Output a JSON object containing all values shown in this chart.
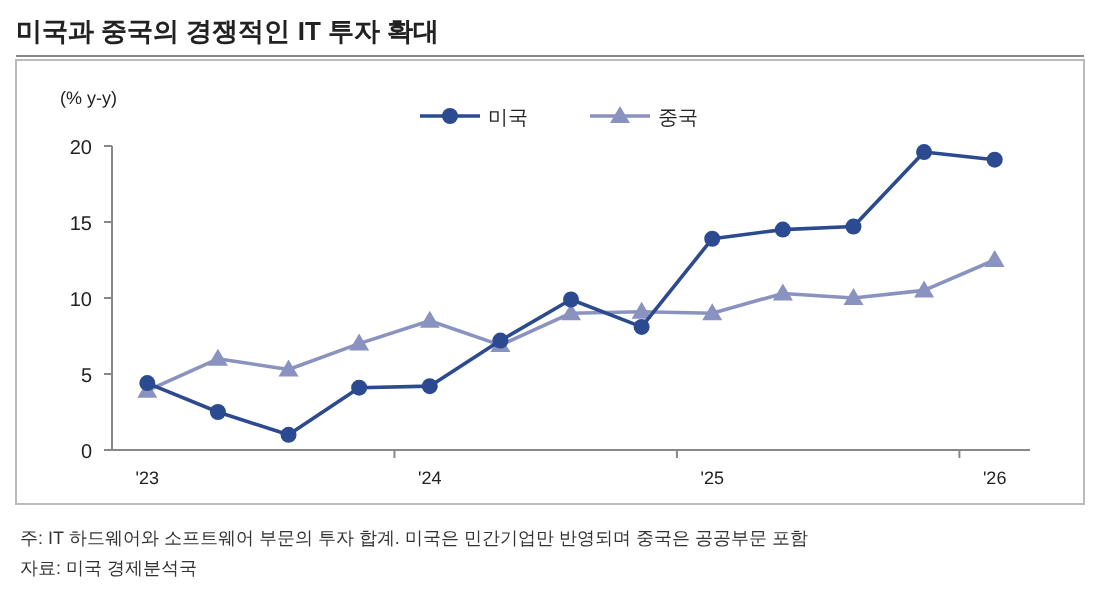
{
  "chart_data": {
    "type": "line",
    "title": "미국과 중국의 경쟁적인 IT 투자 확대",
    "ylabel": "(% y-y)",
    "categories": [
      "'23",
      null,
      null,
      null,
      "'24",
      null,
      null,
      null,
      "'25",
      null,
      null,
      null,
      "'26"
    ],
    "series": [
      {
        "name": "미국",
        "color": "#2b4a8f",
        "marker": "circle",
        "values": [
          4.4,
          2.5,
          1.0,
          4.1,
          4.2,
          7.2,
          9.9,
          8.1,
          13.9,
          14.5,
          14.7,
          19.6,
          19.1
        ]
      },
      {
        "name": "중국",
        "color": "#8a93c0",
        "marker": "triangle",
        "values": [
          3.9,
          6.0,
          5.3,
          7.0,
          8.5,
          6.9,
          9.0,
          9.1,
          9.0,
          10.3,
          10.0,
          10.5,
          12.5
        ]
      }
    ],
    "ylim": [
      0,
      20
    ],
    "yticks": [
      0,
      5,
      10,
      15,
      20
    ],
    "grid": false,
    "legend": "top",
    "line_style": "solid",
    "annotations": [
      "주: IT 하드웨어와 소프트웨어 부문의 투자 합계. 미국은 민간기업만 반영되며 중국은 공공부문 포함",
      "자료: 미국 경제분석국"
    ]
  }
}
